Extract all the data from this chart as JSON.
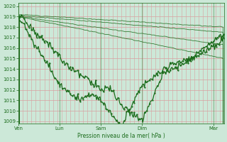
{
  "bg_color": "#cce8d8",
  "grid_color_h": "#d8a0a0",
  "grid_color_v": "#d8a0a0",
  "line_color": "#1a6b1a",
  "xlabel": "Pression niveau de la mer( hPa )",
  "ylim": [
    1008.8,
    1020.3
  ],
  "yticks": [
    1009,
    1010,
    1011,
    1012,
    1013,
    1014,
    1015,
    1016,
    1017,
    1018,
    1019,
    1020
  ],
  "xtick_labels": [
    "Ven",
    "Lun",
    "Sam",
    "Dim",
    "Mar"
  ],
  "xtick_positions": [
    0,
    48,
    96,
    144,
    228
  ],
  "total_points": 240,
  "n_vgrid": 48
}
